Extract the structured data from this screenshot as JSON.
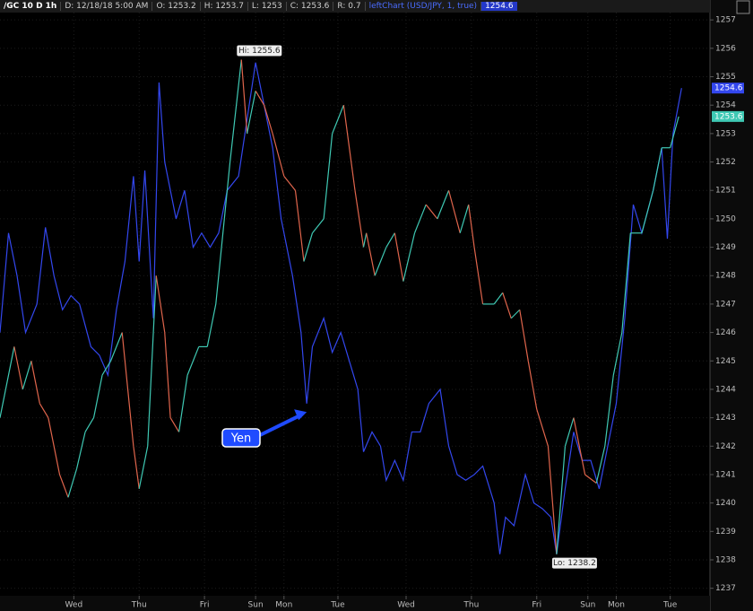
{
  "header": {
    "symbol": "/GC 10 D 1h",
    "date": "D: 12/18/18 5:00 AM",
    "open": "O: 1253.2",
    "high": "H: 1253.7",
    "low": "L: 1253",
    "close": "C: 1253.6",
    "range": "R: 0.7",
    "study": "leftChart (USD/JPY, 1, true)",
    "study_value": "1254.6"
  },
  "chart_data": {
    "type": "line",
    "xlim": [
      0,
      250
    ],
    "xticks": [
      {
        "value": 26,
        "label": "Wed"
      },
      {
        "value": 49,
        "label": "Thu"
      },
      {
        "value": 72,
        "label": "Fri"
      },
      {
        "value": 90,
        "label": "Sun"
      },
      {
        "value": 100,
        "label": "Mon"
      },
      {
        "value": 119,
        "label": "Tue"
      },
      {
        "value": 143,
        "label": "Wed"
      },
      {
        "value": 166,
        "label": "Thu"
      },
      {
        "value": 189,
        "label": "Fri"
      },
      {
        "value": 207,
        "label": "Sun"
      },
      {
        "value": 217,
        "label": "Mon"
      },
      {
        "value": 236,
        "label": "Tue"
      }
    ],
    "ylim": [
      1236.2,
      1257.7
    ],
    "yticks": [
      1237,
      1238,
      1239,
      1240,
      1241,
      1242,
      1243,
      1244,
      1245,
      1246,
      1247,
      1248,
      1249,
      1250,
      1251,
      1252,
      1253,
      1254,
      1255,
      1256,
      1257
    ],
    "grid": true,
    "series": [
      {
        "up_color": "#3fc9b4",
        "down_color": "#e0654c",
        "last_label": "1253.6",
        "x": [
          0,
          5,
          8,
          11,
          14,
          17,
          21,
          24,
          27,
          30,
          33,
          36,
          39,
          43,
          47,
          49,
          52,
          55,
          58,
          60,
          63,
          66,
          70,
          73,
          76,
          79,
          81,
          85,
          87,
          90,
          93,
          96,
          100,
          104,
          107,
          110,
          114,
          117,
          121,
          125,
          128,
          129,
          132,
          136,
          139,
          142,
          146,
          150,
          154,
          158,
          162,
          165,
          167,
          170,
          174,
          177,
          180,
          183,
          186,
          189,
          193,
          196,
          199,
          202,
          206,
          210,
          213,
          216,
          219,
          222,
          226,
          230,
          233,
          236,
          239
        ],
        "values": [
          1243,
          1245.5,
          1244,
          1245,
          1243.5,
          1243,
          1241,
          1240.2,
          1241.2,
          1242.5,
          1243,
          1244.5,
          1245,
          1246,
          1242,
          1240.5,
          1242,
          1248,
          1246,
          1243,
          1242.5,
          1244.5,
          1245.5,
          1245.5,
          1247,
          1250,
          1252,
          1255.6,
          1253,
          1254.5,
          1254,
          1253,
          1251.5,
          1251,
          1248.5,
          1249.5,
          1250,
          1253,
          1254,
          1251,
          1249,
          1249.5,
          1248,
          1249,
          1249.5,
          1247.8,
          1249.5,
          1250.5,
          1250,
          1251,
          1249.5,
          1250.5,
          1249,
          1247,
          1247,
          1247.4,
          1246.5,
          1246.8,
          1245,
          1243.3,
          1242,
          1238.2,
          1242,
          1243,
          1241,
          1240.7,
          1242,
          1244.5,
          1246,
          1249.5,
          1249.5,
          1251,
          1252.5,
          1252.5,
          1253.6
        ]
      },
      {
        "color": "#3347ee",
        "last_label": "1254.6",
        "x": [
          0,
          3,
          6,
          9,
          13,
          16,
          19,
          22,
          25,
          28,
          32,
          35,
          38,
          41,
          44,
          47,
          49,
          51,
          54,
          56,
          58,
          62,
          65,
          68,
          71,
          74,
          77,
          80,
          84,
          87,
          90,
          93,
          96,
          99,
          103,
          106,
          108,
          110,
          114,
          117,
          120,
          123,
          126,
          128,
          131,
          134,
          136,
          139,
          142,
          145,
          148,
          151,
          155,
          158,
          161,
          164,
          167,
          170,
          174,
          176,
          178,
          181,
          185,
          188,
          191,
          194,
          196,
          199,
          202,
          205,
          208,
          211,
          214,
          217,
          220,
          223,
          226,
          230,
          233,
          235,
          237,
          240
        ],
        "values": [
          1246,
          1249.5,
          1248,
          1246,
          1247,
          1249.7,
          1248,
          1246.8,
          1247.3,
          1247,
          1245.5,
          1245.2,
          1244.5,
          1246.8,
          1248.5,
          1251.5,
          1248.5,
          1251.7,
          1246.5,
          1254.8,
          1252,
          1250,
          1251,
          1249,
          1249.5,
          1249,
          1249.5,
          1251,
          1251.5,
          1253.5,
          1255.5,
          1254,
          1252.5,
          1250,
          1248,
          1246,
          1243.5,
          1245.5,
          1246.5,
          1245.3,
          1246,
          1245,
          1244,
          1241.8,
          1242.5,
          1242,
          1240.8,
          1241.5,
          1240.8,
          1242.5,
          1242.5,
          1243.5,
          1244,
          1242,
          1241,
          1240.8,
          1241,
          1241.3,
          1240,
          1238.2,
          1239.5,
          1239.2,
          1241,
          1240,
          1239.8,
          1239.5,
          1238.2,
          1240.5,
          1242.5,
          1241.5,
          1241.5,
          1240.5,
          1242,
          1243.5,
          1246.5,
          1250.5,
          1249.5,
          1251,
          1252.5,
          1249.3,
          1253,
          1254.6
        ]
      }
    ],
    "annotations": [
      {
        "label": "Hi: 1255.6",
        "x": 85,
        "y": 1255.6
      },
      {
        "label": "Lo: 1238.2",
        "x": 196,
        "y": 1238.2
      },
      {
        "label": "Yen",
        "x": 108,
        "y": 1243.2
      }
    ]
  }
}
